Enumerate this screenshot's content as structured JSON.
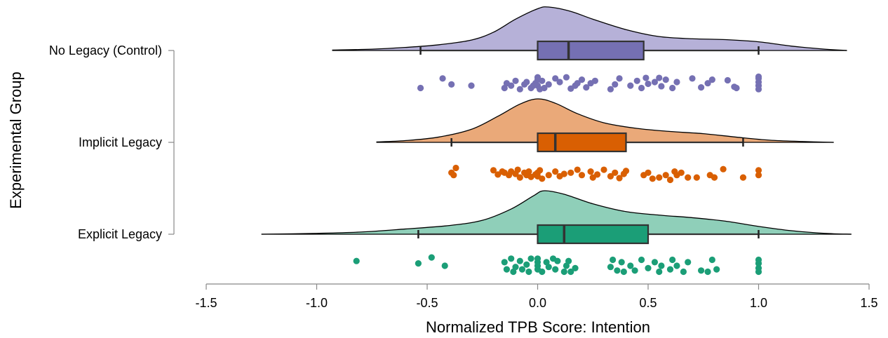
{
  "chart_data": {
    "type": "raincloud",
    "xlabel": "Normalized TPB Score: Intention",
    "ylabel": "Experimental Group",
    "xlim": [
      -1.5,
      1.5
    ],
    "xticks": [
      "-1.5",
      "-1.0",
      "-0.5",
      "0.0",
      "0.5",
      "1.0",
      "1.5"
    ],
    "xtick_values": [
      -1.5,
      -1.0,
      -0.5,
      0.0,
      0.5,
      1.0,
      1.5
    ],
    "grid": false,
    "groups": [
      {
        "name": "No Legacy (Control)",
        "fill": "#b6b1d8",
        "box_color": "#7570b3",
        "point_color": "#7570b3",
        "box": {
          "whisker_low": -0.53,
          "q1": 0.0,
          "median": 0.14,
          "q3": 0.48,
          "whisker_high": 1.0
        },
        "density_range": [
          -0.93,
          1.4
        ],
        "density": [
          [
            -0.93,
            0.01
          ],
          [
            -0.75,
            0.03
          ],
          [
            -0.6,
            0.07
          ],
          [
            -0.45,
            0.13
          ],
          [
            -0.3,
            0.24
          ],
          [
            -0.2,
            0.42
          ],
          [
            -0.1,
            0.72
          ],
          [
            0.0,
            0.96
          ],
          [
            0.05,
            1.0
          ],
          [
            0.15,
            0.9
          ],
          [
            0.25,
            0.72
          ],
          [
            0.4,
            0.48
          ],
          [
            0.55,
            0.32
          ],
          [
            0.7,
            0.27
          ],
          [
            0.85,
            0.25
          ],
          [
            1.0,
            0.2
          ],
          [
            1.15,
            0.1
          ],
          [
            1.3,
            0.03
          ],
          [
            1.4,
            0.0
          ]
        ],
        "points": [
          [
            -0.53,
            0.5
          ],
          [
            -0.43,
            -0.3
          ],
          [
            -0.39,
            0.2
          ],
          [
            -0.3,
            0.3
          ],
          [
            -0.15,
            0.5
          ],
          [
            -0.14,
            0.1
          ],
          [
            -0.12,
            0.3
          ],
          [
            -0.1,
            -0.1
          ],
          [
            -0.08,
            0.6
          ],
          [
            -0.06,
            0.2
          ],
          [
            -0.05,
            0.0
          ],
          [
            -0.03,
            0.5
          ],
          [
            -0.02,
            0.3
          ],
          [
            -0.01,
            0.1
          ],
          [
            0.0,
            -0.2
          ],
          [
            0.0,
            -0.4
          ],
          [
            0.0,
            0.3
          ],
          [
            0.01,
            0.6
          ],
          [
            0.02,
            -0.1
          ],
          [
            0.03,
            0.5
          ],
          [
            0.05,
            0.2
          ],
          [
            0.08,
            -0.3
          ],
          [
            0.1,
            0.0
          ],
          [
            0.13,
            -0.4
          ],
          [
            0.15,
            0.55
          ],
          [
            0.17,
            0.3
          ],
          [
            0.18,
            0.1
          ],
          [
            0.2,
            -0.2
          ],
          [
            0.22,
            0.45
          ],
          [
            0.24,
            0.1
          ],
          [
            0.26,
            -0.1
          ],
          [
            0.33,
            0.6
          ],
          [
            0.35,
            0.2
          ],
          [
            0.37,
            -0.3
          ],
          [
            0.42,
            0.3
          ],
          [
            0.45,
            -0.1
          ],
          [
            0.47,
            0.5
          ],
          [
            0.49,
            -0.35
          ],
          [
            0.5,
            0.15
          ],
          [
            0.53,
            0.0
          ],
          [
            0.56,
            0.35
          ],
          [
            0.55,
            -0.35
          ],
          [
            0.58,
            -0.2
          ],
          [
            0.61,
            0.5
          ],
          [
            0.63,
            0.0
          ],
          [
            0.7,
            -0.3
          ],
          [
            0.74,
            0.45
          ],
          [
            0.77,
            0.1
          ],
          [
            0.79,
            -0.2
          ],
          [
            0.86,
            -0.15
          ],
          [
            0.89,
            0.4
          ],
          [
            0.9,
            0.5
          ],
          [
            1.0,
            0.6
          ],
          [
            1.0,
            0.3
          ],
          [
            1.0,
            0.0
          ],
          [
            1.0,
            -0.3
          ],
          [
            1.0,
            -0.45
          ]
        ]
      },
      {
        "name": "Implicit Legacy",
        "fill": "#eaa979",
        "box_color": "#d95f02",
        "point_color": "#d95f02",
        "box": {
          "whisker_low": -0.39,
          "q1": 0.0,
          "median": 0.08,
          "q3": 0.4,
          "whisker_high": 0.93
        },
        "density_range": [
          -0.73,
          1.34
        ],
        "density": [
          [
            -0.73,
            0.01
          ],
          [
            -0.6,
            0.04
          ],
          [
            -0.45,
            0.12
          ],
          [
            -0.3,
            0.3
          ],
          [
            -0.18,
            0.6
          ],
          [
            -0.08,
            0.88
          ],
          [
            0.0,
            1.0
          ],
          [
            0.08,
            0.9
          ],
          [
            0.18,
            0.66
          ],
          [
            0.3,
            0.45
          ],
          [
            0.45,
            0.32
          ],
          [
            0.6,
            0.25
          ],
          [
            0.75,
            0.2
          ],
          [
            0.9,
            0.12
          ],
          [
            1.05,
            0.05
          ],
          [
            1.2,
            0.02
          ],
          [
            1.34,
            0.0
          ]
        ],
        "points": [
          [
            -0.39,
            -0.1
          ],
          [
            -0.38,
            0.1
          ],
          [
            -0.37,
            -0.5
          ],
          [
            -0.2,
            -0.3
          ],
          [
            -0.18,
            0.05
          ],
          [
            -0.16,
            -0.2
          ],
          [
            -0.15,
            -0.1
          ],
          [
            -0.13,
            0.1
          ],
          [
            -0.12,
            -0.2
          ],
          [
            -0.1,
            0.0
          ],
          [
            -0.09,
            -0.35
          ],
          [
            -0.08,
            0.3
          ],
          [
            -0.06,
            -0.1
          ],
          [
            -0.05,
            0.1
          ],
          [
            -0.04,
            -0.2
          ],
          [
            -0.03,
            0.25
          ],
          [
            -0.01,
            0.05
          ],
          [
            0.0,
            -0.1
          ],
          [
            0.0,
            0.2
          ],
          [
            0.01,
            -0.3
          ],
          [
            0.02,
            0.4
          ],
          [
            0.05,
            0.1
          ],
          [
            0.08,
            -0.2
          ],
          [
            0.1,
            0.2
          ],
          [
            0.12,
            0.0
          ],
          [
            0.15,
            -0.1
          ],
          [
            0.18,
            -0.35
          ],
          [
            0.2,
            0.1
          ],
          [
            0.24,
            -0.2
          ],
          [
            0.25,
            0.3
          ],
          [
            0.27,
            0.05
          ],
          [
            0.3,
            -0.35
          ],
          [
            0.33,
            0.2
          ],
          [
            0.35,
            -0.1
          ],
          [
            0.37,
            0.35
          ],
          [
            0.39,
            0.0
          ],
          [
            0.4,
            -0.25
          ],
          [
            0.48,
            0.1
          ],
          [
            0.5,
            -0.1
          ],
          [
            0.52,
            0.4
          ],
          [
            0.55,
            0.3
          ],
          [
            0.58,
            0.1
          ],
          [
            0.6,
            0.5
          ],
          [
            0.62,
            -0.2
          ],
          [
            0.63,
            0.1
          ],
          [
            0.65,
            -0.1
          ],
          [
            0.68,
            0.3
          ],
          [
            0.72,
            0.3
          ],
          [
            0.78,
            0.1
          ],
          [
            0.8,
            0.3
          ],
          [
            0.84,
            -0.4
          ],
          [
            0.93,
            0.3
          ],
          [
            1.0,
            0.1
          ],
          [
            1.0,
            -0.3
          ]
        ]
      },
      {
        "name": "Explicit Legacy",
        "fill": "#8fcfb9",
        "box_color": "#1b9e77",
        "point_color": "#1b9e77",
        "box": {
          "whisker_low": -0.54,
          "q1": 0.0,
          "median": 0.12,
          "q3": 0.5,
          "whisker_high": 1.0
        },
        "density_range": [
          -1.25,
          1.42
        ],
        "density": [
          [
            -1.25,
            0.0
          ],
          [
            -1.0,
            0.02
          ],
          [
            -0.8,
            0.05
          ],
          [
            -0.6,
            0.12
          ],
          [
            -0.4,
            0.2
          ],
          [
            -0.25,
            0.32
          ],
          [
            -0.12,
            0.58
          ],
          [
            -0.02,
            0.88
          ],
          [
            0.03,
            1.0
          ],
          [
            0.12,
            0.92
          ],
          [
            0.25,
            0.7
          ],
          [
            0.4,
            0.52
          ],
          [
            0.55,
            0.44
          ],
          [
            0.7,
            0.38
          ],
          [
            0.85,
            0.3
          ],
          [
            1.0,
            0.18
          ],
          [
            1.15,
            0.08
          ],
          [
            1.3,
            0.02
          ],
          [
            1.42,
            0.0
          ]
        ],
        "points": [
          [
            -0.82,
            -0.4
          ],
          [
            -0.54,
            -0.2
          ],
          [
            -0.48,
            -0.7
          ],
          [
            -0.42,
            0.0
          ],
          [
            -0.15,
            -0.3
          ],
          [
            -0.14,
            0.3
          ],
          [
            -0.12,
            -0.6
          ],
          [
            -0.11,
            0.5
          ],
          [
            -0.1,
            0.1
          ],
          [
            -0.08,
            -0.4
          ],
          [
            -0.07,
            0.3
          ],
          [
            -0.05,
            -0.1
          ],
          [
            -0.04,
            0.5
          ],
          [
            -0.03,
            -0.6
          ],
          [
            0.0,
            -0.3
          ],
          [
            0.0,
            0.0
          ],
          [
            0.0,
            0.3
          ],
          [
            0.0,
            -0.6
          ],
          [
            0.02,
            0.5
          ],
          [
            0.04,
            -0.3
          ],
          [
            0.05,
            0.1
          ],
          [
            0.07,
            -0.6
          ],
          [
            0.08,
            0.3
          ],
          [
            0.09,
            -0.4
          ],
          [
            0.12,
            0.5
          ],
          [
            0.13,
            0.0
          ],
          [
            0.14,
            -0.4
          ],
          [
            0.15,
            0.5
          ],
          [
            0.17,
            0.2
          ],
          [
            0.33,
            0.1
          ],
          [
            0.34,
            -0.5
          ],
          [
            0.36,
            0.4
          ],
          [
            0.38,
            -0.3
          ],
          [
            0.39,
            0.5
          ],
          [
            0.42,
            0.0
          ],
          [
            0.44,
            0.4
          ],
          [
            0.47,
            -0.5
          ],
          [
            0.5,
            0.2
          ],
          [
            0.53,
            -0.3
          ],
          [
            0.55,
            0.5
          ],
          [
            0.56,
            0.0
          ],
          [
            0.6,
            0.3
          ],
          [
            0.61,
            -0.5
          ],
          [
            0.63,
            0.0
          ],
          [
            0.66,
            0.5
          ],
          [
            0.68,
            -0.3
          ],
          [
            0.74,
            0.4
          ],
          [
            0.77,
            0.5
          ],
          [
            0.79,
            -0.5
          ],
          [
            0.81,
            0.3
          ],
          [
            1.0,
            0.5
          ],
          [
            1.0,
            0.2
          ],
          [
            1.0,
            -0.2
          ],
          [
            1.0,
            -0.5
          ]
        ]
      }
    ]
  }
}
